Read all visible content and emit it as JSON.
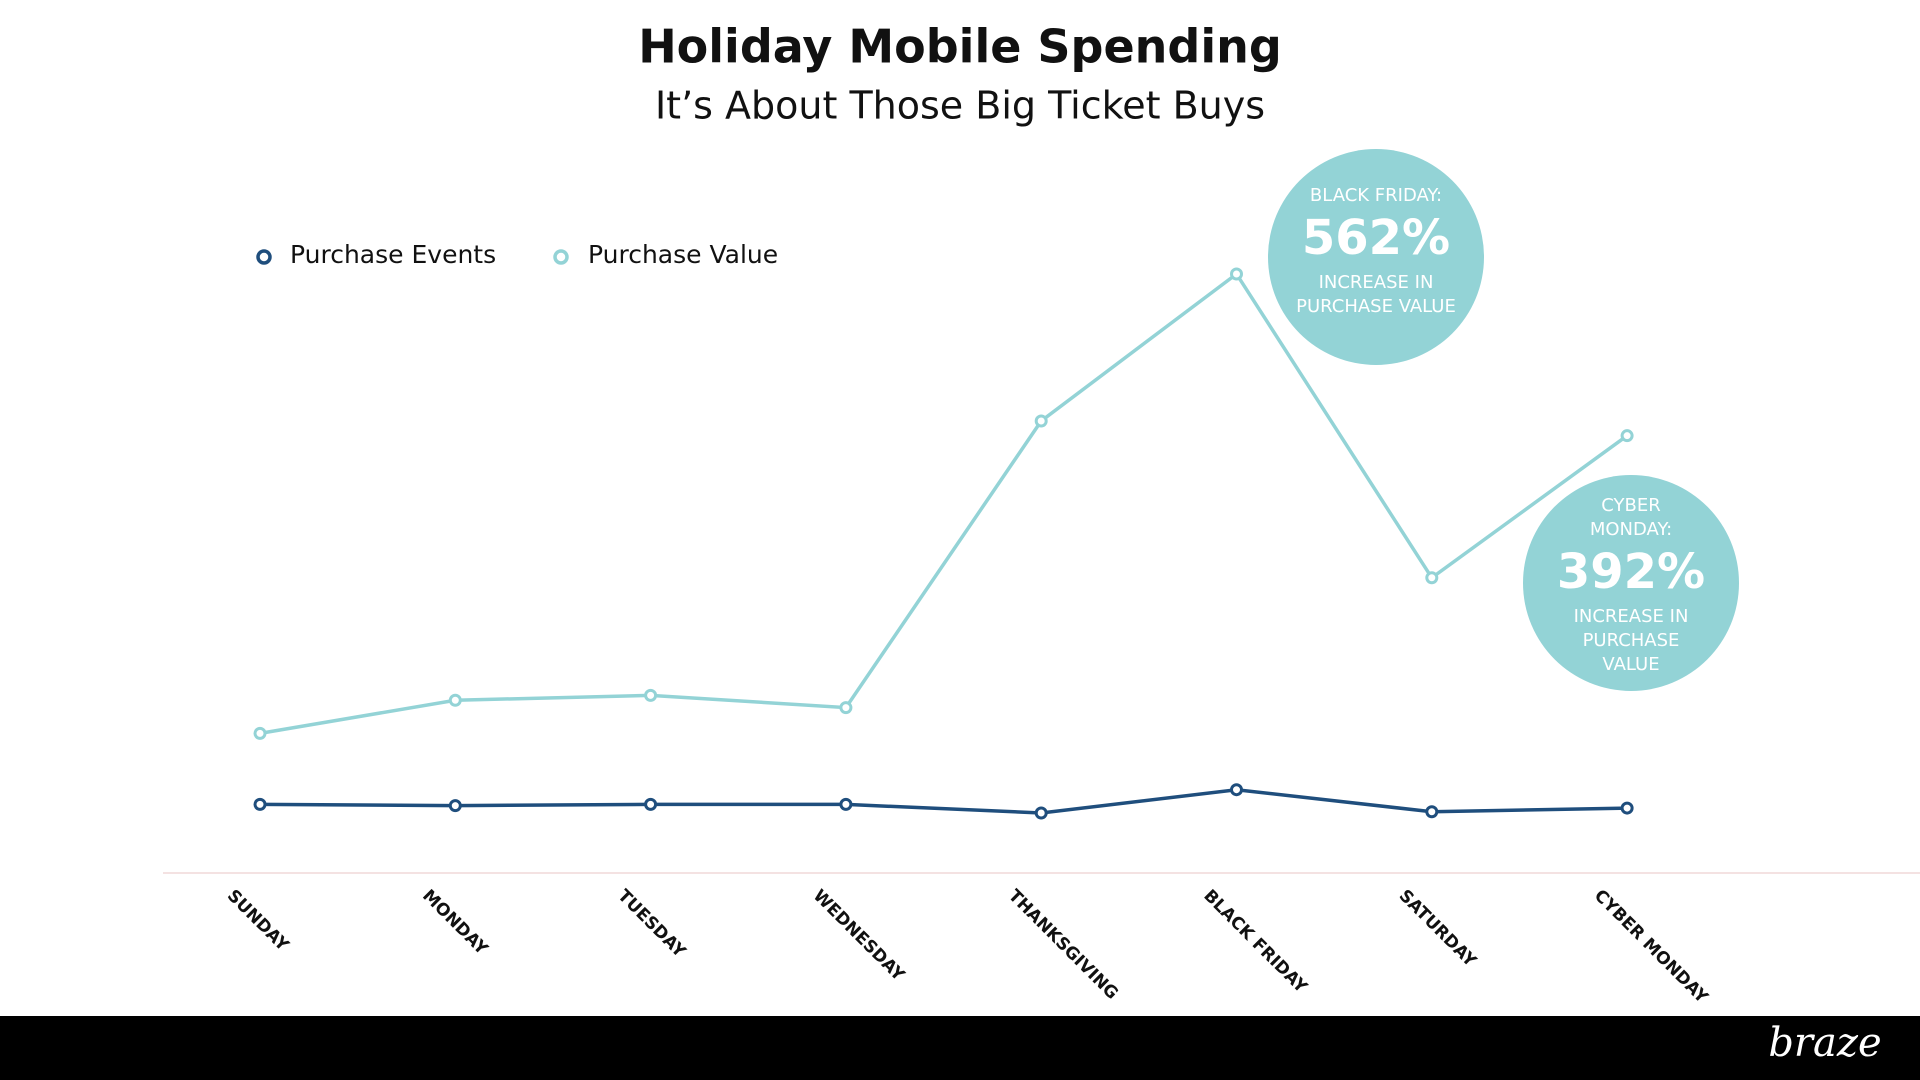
{
  "chart_data": {
    "type": "line",
    "title": "Holiday Mobile Spending",
    "subtitle": "It’s About Those Big Ticket Buys",
    "categories": [
      "SUNDAY",
      "MONDAY",
      "TUESDAY",
      "WEDNESDAY",
      "THANKSGIVING",
      "BLACK FRIDAY",
      "SATURDAY",
      "CYBER MONDAY"
    ],
    "series": [
      {
        "name": "Purchase Events",
        "color": "#1f4e7d",
        "values": [
          56,
          55,
          56,
          56,
          49,
          68,
          50,
          53
        ]
      },
      {
        "name": "Purchase Value",
        "color": "#93d3d6",
        "values": [
          114,
          141,
          145,
          135,
          369,
          489,
          241,
          357
        ]
      }
    ],
    "ylim": [
      0,
      600
    ],
    "legend": "top-left",
    "annotations": [
      {
        "lines_above": [
          "BLACK FRIDAY:"
        ],
        "value": 562,
        "value_label": "562%",
        "lines_below": [
          "INCREASE IN",
          "PURCHASE VALUE"
        ],
        "color": "#93d3d6"
      },
      {
        "lines_above": [
          "CYBER",
          "MONDAY:"
        ],
        "value": 392,
        "value_label": "392%",
        "lines_below": [
          "INCREASE IN",
          "PURCHASE",
          "VALUE"
        ],
        "color": "#93d3d6"
      }
    ]
  },
  "brand": "braze"
}
